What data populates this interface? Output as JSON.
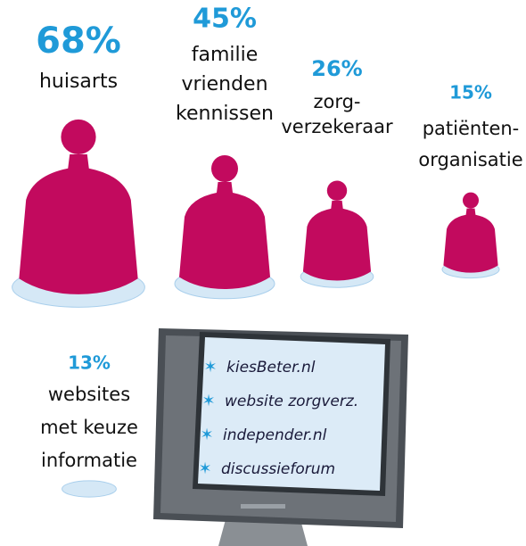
{
  "chart_data": {
    "type": "pictogram",
    "categories": [
      [
        "huisarts"
      ],
      [
        "familie",
        "vrienden",
        "kennissen"
      ],
      [
        "zorg-",
        "verzekeraar"
      ],
      [
        "patiënten-",
        "organisatie"
      ],
      [
        "websites",
        "met keuze",
        "informatie"
      ]
    ],
    "values": [
      68,
      45,
      26,
      15,
      13
    ],
    "value_labels": [
      "68%",
      "45%",
      "26%",
      "15%",
      "13%"
    ],
    "color": "#c20a5e",
    "label_color": "#1f9ad8",
    "screen_items": [
      "kiesBeter.nl",
      "website zorgverz.",
      "independer.nl",
      "discussieforum"
    ]
  }
}
